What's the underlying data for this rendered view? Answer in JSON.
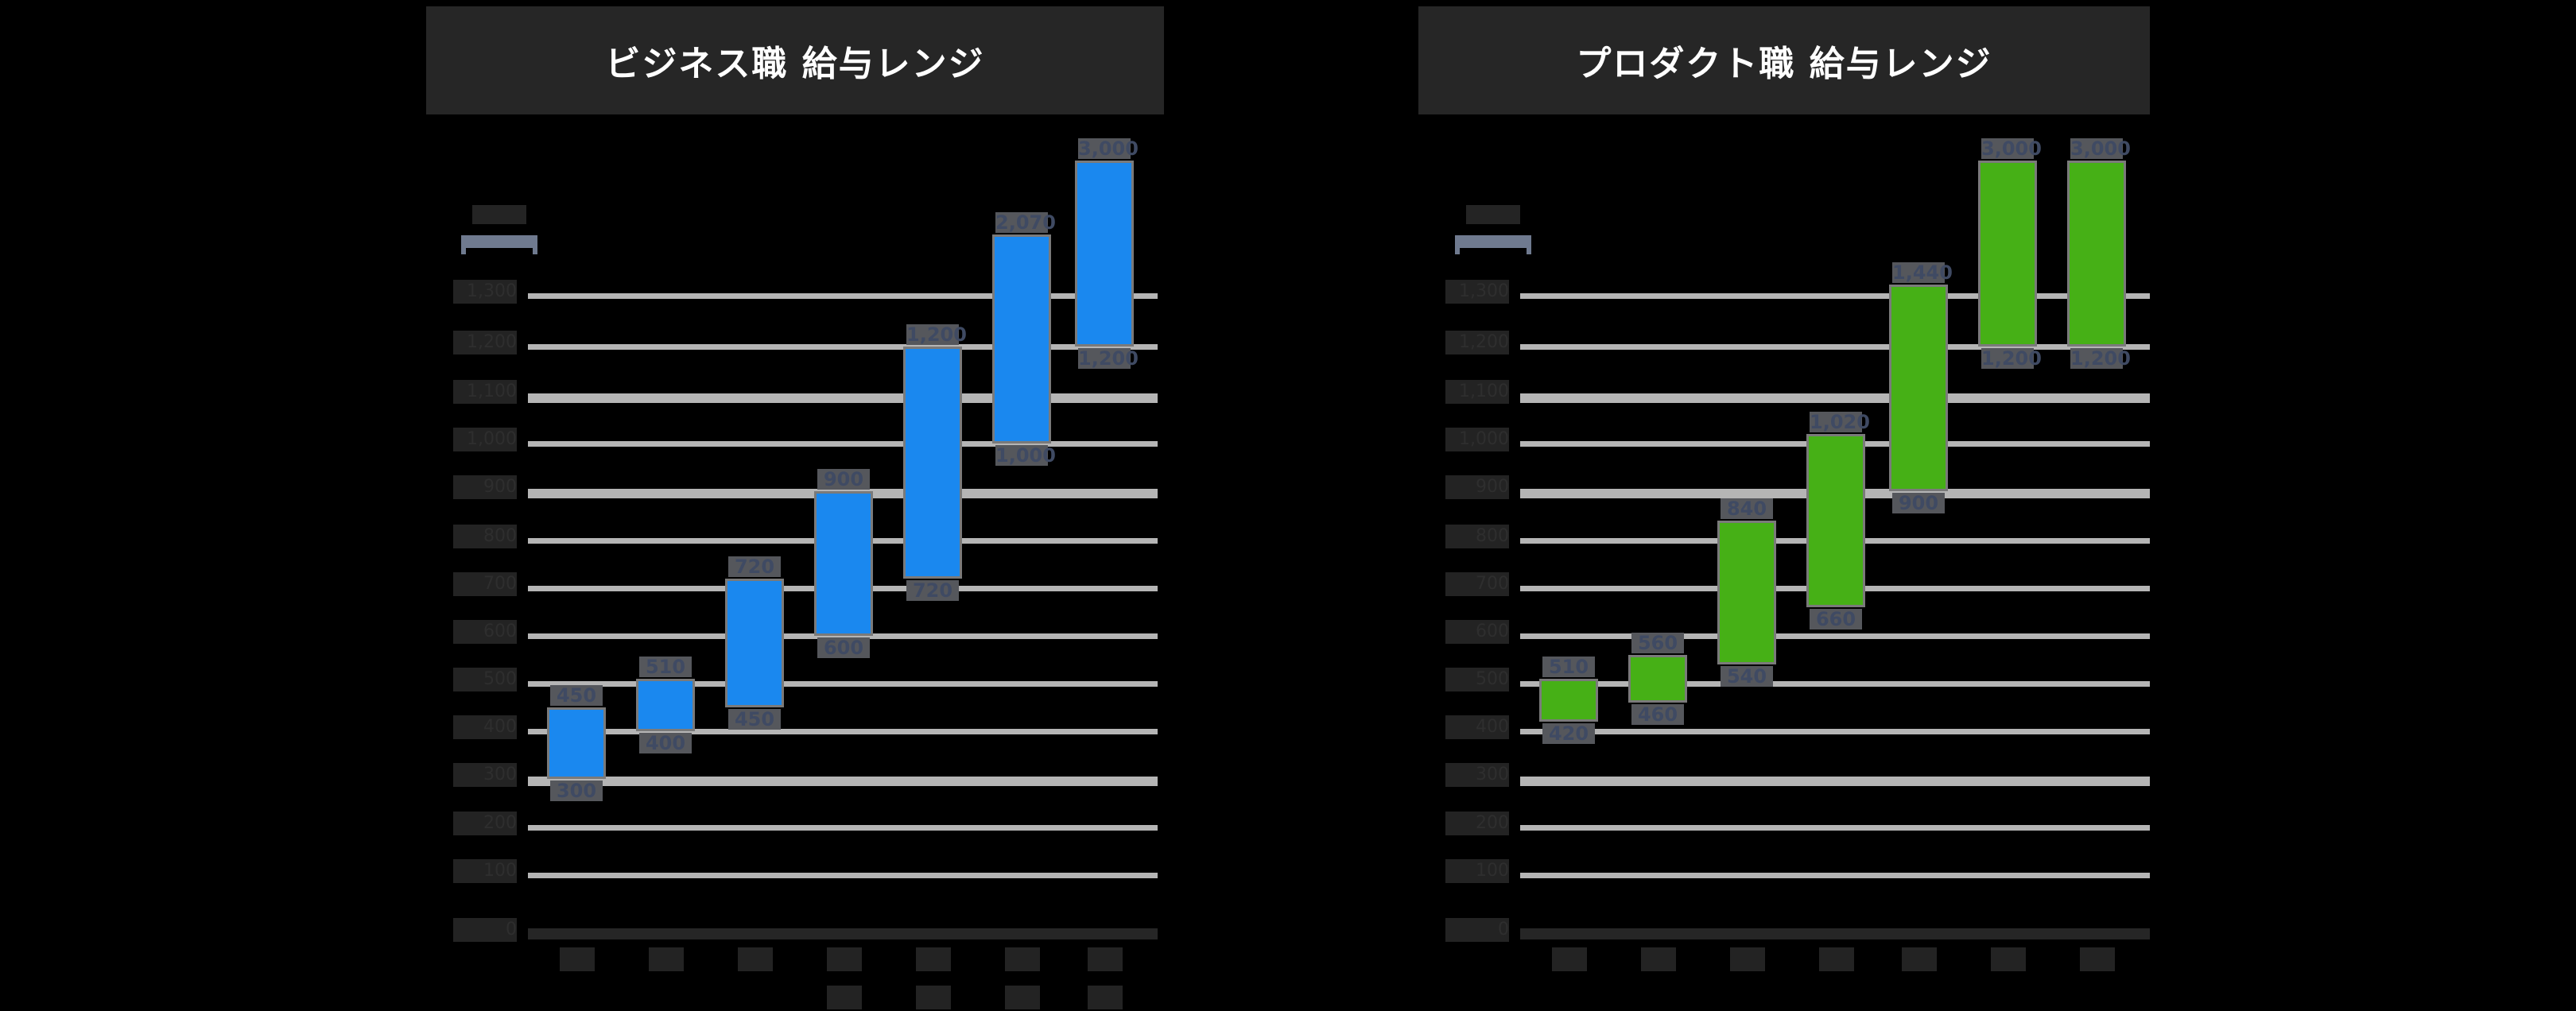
{
  "chart_data": [
    {
      "type": "bar",
      "subtype": "floating-range",
      "title": "ビジネス職 給与レンジ",
      "bar_color": "#1a88ef",
      "unit_label": "",
      "xlabel": "",
      "ylabel": "",
      "ylim": [
        0,
        1300
      ],
      "yticks": [
        "0",
        "100",
        "200",
        "300",
        "400",
        "500",
        "600",
        "700",
        "800",
        "900",
        "1,000",
        "1,100",
        "1,200",
        "1,300"
      ],
      "categories": [
        "",
        "",
        "",
        "",
        "",
        "",
        ""
      ],
      "ranges": [
        {
          "min": 300,
          "max": 450,
          "min_label": "300",
          "max_label": "450"
        },
        {
          "min": 400,
          "max": 510,
          "min_label": "400",
          "max_label": "510"
        },
        {
          "min": 450,
          "max": 720,
          "min_label": "450",
          "max_label": "720"
        },
        {
          "min": 600,
          "max": 900,
          "min_label": "600",
          "max_label": "900"
        },
        {
          "min": 720,
          "max": 1200,
          "min_label": "720",
          "max_label": "1,200"
        },
        {
          "min": 1000,
          "max": 2070,
          "min_label": "1,000",
          "max_label": "2,070"
        },
        {
          "min": 1200,
          "max": 3000,
          "min_label": "1,200",
          "max_label": "3,000"
        }
      ],
      "grid": true
    },
    {
      "type": "bar",
      "subtype": "floating-range",
      "title": "プロダクト職 給与レンジ",
      "bar_color": "#46b016",
      "unit_label": "",
      "xlabel": "",
      "ylabel": "",
      "ylim": [
        0,
        1300
      ],
      "yticks": [
        "0",
        "100",
        "200",
        "300",
        "400",
        "500",
        "600",
        "700",
        "800",
        "900",
        "1,000",
        "1,100",
        "1,200",
        "1,300"
      ],
      "categories": [
        "",
        "",
        "",
        "",
        "",
        "",
        ""
      ],
      "ranges": [
        {
          "min": 420,
          "max": 510,
          "min_label": "420",
          "max_label": "510"
        },
        {
          "min": 460,
          "max": 560,
          "min_label": "460",
          "max_label": "560"
        },
        {
          "min": 540,
          "max": 840,
          "min_label": "540",
          "max_label": "840"
        },
        {
          "min": 660,
          "max": 1020,
          "min_label": "660",
          "max_label": "1,020"
        },
        {
          "min": 900,
          "max": 1440,
          "min_label": "900",
          "max_label": "1,440"
        },
        {
          "min": 1200,
          "max": 3000,
          "min_label": "1,200",
          "max_label": "3,000"
        },
        {
          "min": 1200,
          "max": 3000,
          "min_label": "1,200",
          "max_label": "3,000"
        }
      ],
      "grid": true
    }
  ],
  "panels": {
    "left": {
      "title": "ビジネス職 給与レンジ"
    },
    "right": {
      "title": "プロダクト職 給与レンジ"
    }
  }
}
